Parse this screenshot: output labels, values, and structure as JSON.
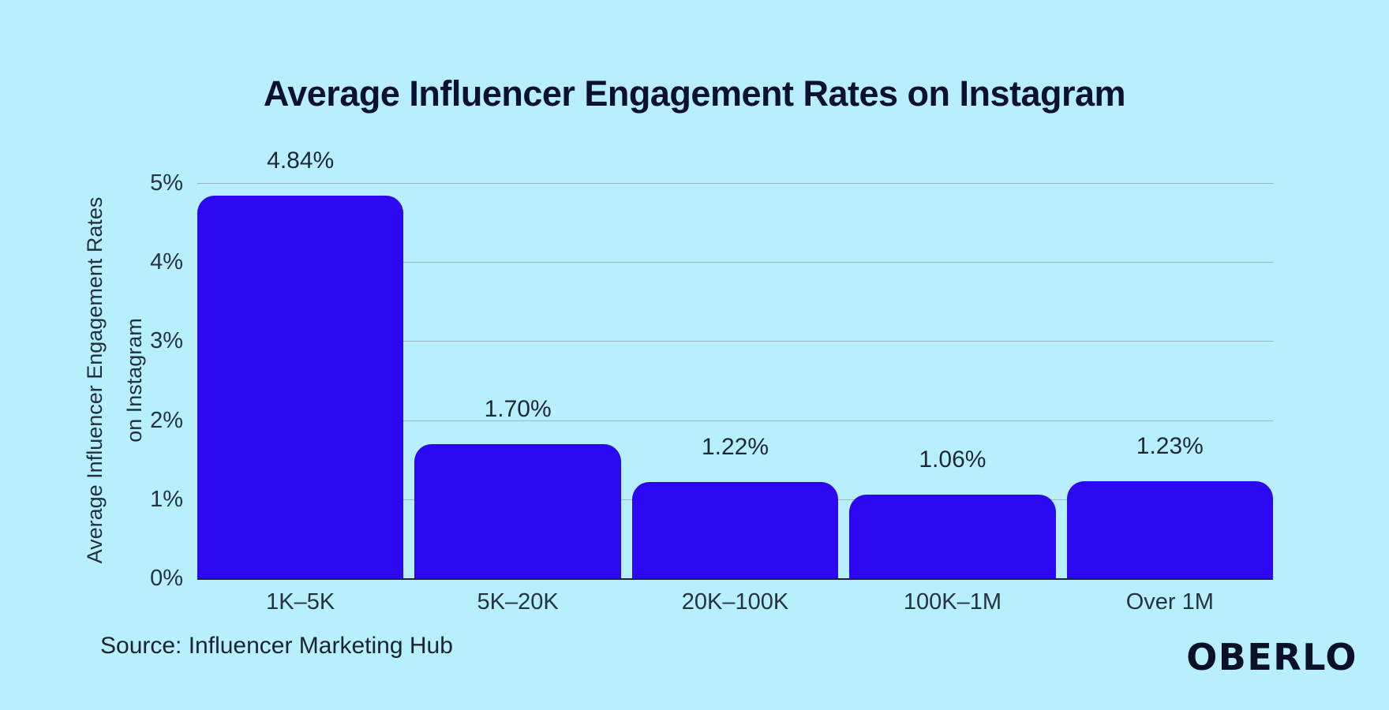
{
  "chart_data": {
    "type": "bar",
    "title": "Average Influencer Engagement Rates on Instagram",
    "categories": [
      "1K–5K",
      "5K–20K",
      "20K–100K",
      "100K–1M",
      "Over 1M"
    ],
    "values": [
      4.84,
      1.7,
      1.22,
      1.06,
      1.23
    ],
    "value_labels": [
      "4.84%",
      "1.70%",
      "1.22%",
      "1.06%",
      "1.23%"
    ],
    "xlabel": "",
    "ylabel_line1": "Average Influencer Engagement Rates",
    "ylabel_line2": "on Instagram",
    "yticks": [
      0,
      1,
      2,
      3,
      4,
      5
    ],
    "ytick_labels": [
      "0%",
      "1%",
      "2%",
      "3%",
      "4%",
      "5%"
    ],
    "ylim": [
      0,
      5
    ],
    "grid": "horizontal",
    "legend": "none",
    "bar_color": "#2c08f0",
    "background_color": "#b7f0fc",
    "gridline_color": "#9fb5c0",
    "title_color": "#0d1130",
    "text_color": "#22303e"
  },
  "footer": {
    "source": "Source: Influencer Marketing Hub",
    "brand": "OBERLO"
  }
}
